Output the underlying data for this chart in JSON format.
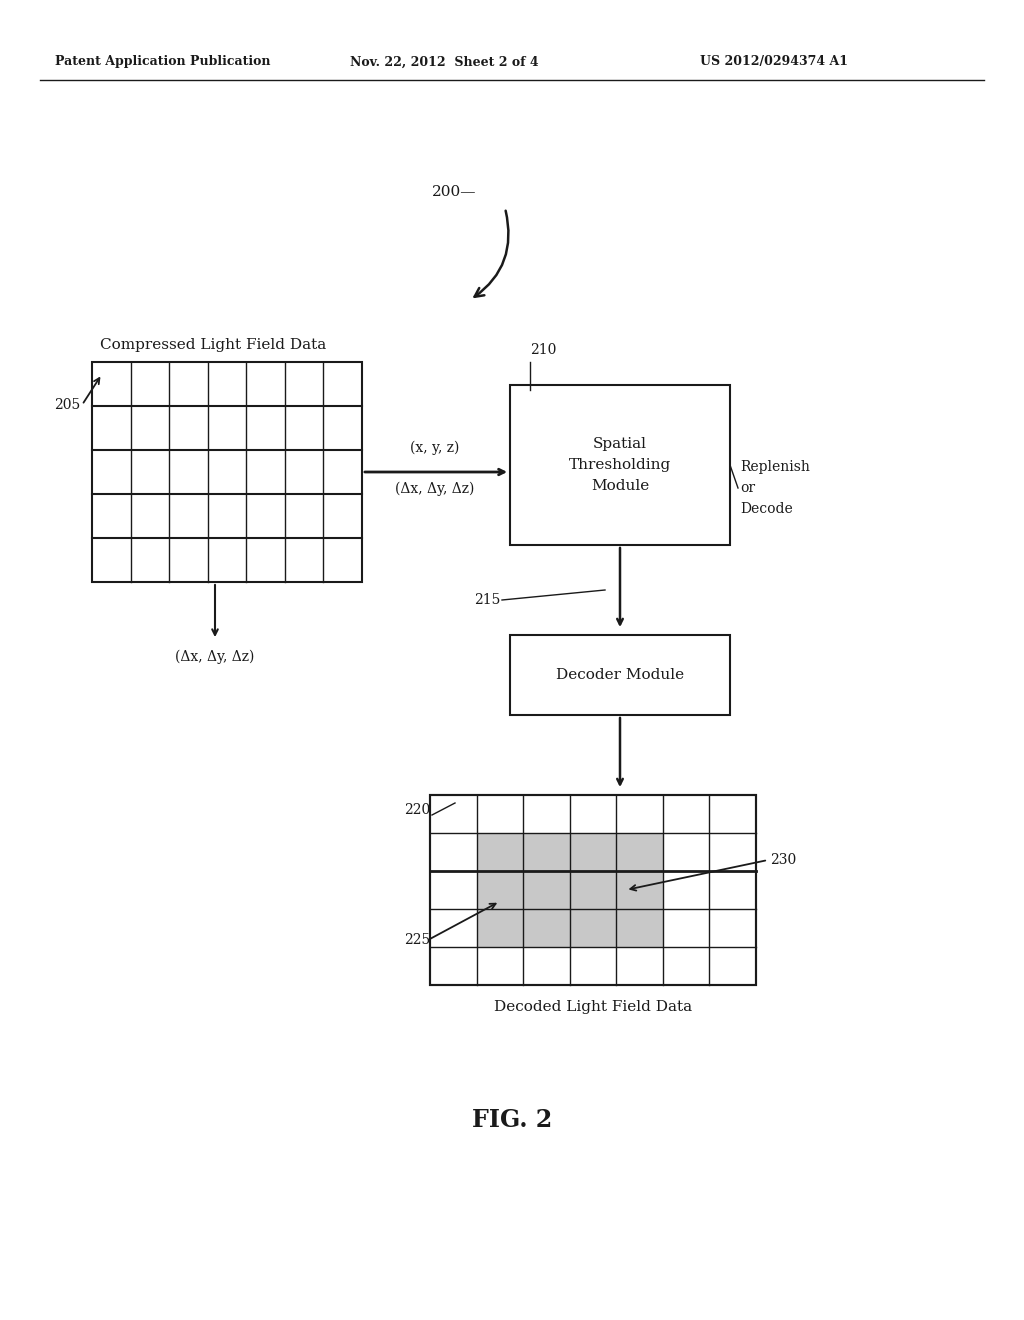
{
  "bg_color": "#ffffff",
  "header_left": "Patent Application Publication",
  "header_mid": "Nov. 22, 2012  Sheet 2 of 4",
  "header_right": "US 2012/0294374 A1",
  "label_200": "200",
  "label_205": "205",
  "label_210": "210",
  "label_215": "215",
  "label_220": "220",
  "label_225": "225",
  "label_230": "230",
  "text_compressed": "Compressed Light Field Data",
  "text_decoded": "Decoded Light Field Data",
  "text_spatial": "Spatial\nThresholding\nModule",
  "text_decoder": "Decoder Module",
  "text_replenish": "Replenish\nor\nDecode",
  "text_xyz": "(x, y, z)",
  "text_delta": "(Δx, Δy, Δz)",
  "text_delta2": "(Δx, Δy, Δz)",
  "fig_label": "FIG. 2",
  "grid1_rows": 5,
  "grid1_cols": 7,
  "grid2_rows": 5,
  "grid2_cols": 7,
  "line_color": "#1a1a1a",
  "shaded_color": "#c8c8c8",
  "arrow_color": "#1a1a1a"
}
